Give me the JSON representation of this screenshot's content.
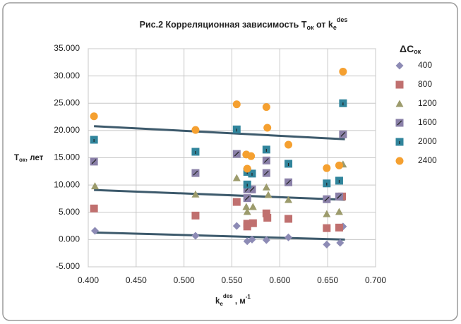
{
  "chart_data": {
    "type": "scatter",
    "title": [
      "Рис.2 Корреляционная зависимость Т",
      "ок",
      " от k",
      "e",
      "des"
    ],
    "x_label": [
      "k",
      "e",
      "des",
      " , м",
      "-1"
    ],
    "y_label": [
      "Т",
      "ок",
      ", лет"
    ],
    "legend_title": [
      "ΔC",
      "ок"
    ],
    "xlim": [
      0.4,
      0.7
    ],
    "xticks": [
      {
        "value": 0.4,
        "label": "0.400"
      },
      {
        "value": 0.45,
        "label": "0.450"
      },
      {
        "value": 0.5,
        "label": "0.500"
      },
      {
        "value": 0.55,
        "label": "0.550"
      },
      {
        "value": 0.6,
        "label": "0.600"
      },
      {
        "value": 0.65,
        "label": "0.650"
      },
      {
        "value": 0.7,
        "label": "0.700"
      }
    ],
    "ylim": [
      -5,
      35
    ],
    "yticks": [
      {
        "value": -5,
        "label": "-5.000"
      },
      {
        "value": 0,
        "label": "0.000"
      },
      {
        "value": 5,
        "label": "5.000"
      },
      {
        "value": 10,
        "label": "10.000"
      },
      {
        "value": 15,
        "label": "15.000"
      },
      {
        "value": 20,
        "label": "20.000"
      },
      {
        "value": 25,
        "label": "25.000"
      },
      {
        "value": 30,
        "label": "30.000"
      },
      {
        "value": 35,
        "label": "35.000"
      }
    ],
    "grid": true,
    "legend": "right",
    "series": [
      {
        "name": "400",
        "color": "#8d8bb5",
        "marker": "diamond",
        "x": [
          0.407,
          0.512,
          0.555,
          0.566,
          0.571,
          0.586,
          0.609,
          0.649,
          0.663,
          0.666
        ],
        "values": [
          1.6,
          0.7,
          2.5,
          -0.3,
          0.0,
          -0.1,
          0.4,
          -0.9,
          -0.6,
          2.4
        ]
      },
      {
        "name": "800",
        "color": "#c0706f",
        "marker": "square",
        "x": [
          0.406,
          0.512,
          0.555,
          0.566,
          0.566,
          0.572,
          0.586,
          0.587,
          0.609,
          0.649,
          0.662,
          0.665
        ],
        "values": [
          5.7,
          4.4,
          6.9,
          2.9,
          2.4,
          3.0,
          4.8,
          4.0,
          3.8,
          2.1,
          2.2,
          7.9
        ]
      },
      {
        "name": "1200",
        "color": "#9c9b6c",
        "marker": "triangle",
        "x": [
          0.407,
          0.512,
          0.555,
          0.565,
          0.566,
          0.572,
          0.586,
          0.588,
          0.609,
          0.649,
          0.662,
          0.666
        ],
        "values": [
          9.8,
          8.3,
          11.3,
          6.0,
          5.1,
          6.0,
          9.6,
          8.2,
          7.3,
          4.7,
          5.1,
          13.8
        ]
      },
      {
        "name": "1600",
        "color": "#8a80a8",
        "marker": "slash-square",
        "x": [
          0.406,
          0.512,
          0.555,
          0.566,
          0.566,
          0.571,
          0.586,
          0.586,
          0.609,
          0.649,
          0.662,
          0.666
        ],
        "values": [
          14.3,
          12.2,
          15.7,
          9.2,
          7.6,
          9.2,
          14.5,
          12.2,
          10.5,
          7.4,
          7.9,
          19.3
        ]
      },
      {
        "name": "2000",
        "color": "#31859c",
        "marker": "tick-square",
        "x": [
          0.406,
          0.512,
          0.555,
          0.566,
          0.566,
          0.571,
          0.586,
          0.609,
          0.649,
          0.662,
          0.666
        ],
        "values": [
          18.3,
          16.1,
          20.2,
          12.4,
          10.1,
          12.1,
          16.5,
          13.9,
          10.3,
          10.8,
          25.0
        ]
      },
      {
        "name": "2400",
        "color": "#f5a030",
        "marker": "circle",
        "x": [
          0.406,
          0.512,
          0.555,
          0.565,
          0.57,
          0.566,
          0.586,
          0.587,
          0.609,
          0.649,
          0.662,
          0.666
        ],
        "values": [
          22.6,
          20.1,
          24.8,
          15.6,
          15.3,
          13.0,
          24.3,
          20.5,
          17.4,
          13.1,
          13.6,
          30.8
        ]
      }
    ],
    "trend_color": "#3d5a6c",
    "trend_lines": [
      {
        "x": [
          0.406,
          0.668
        ],
        "values": [
          20.8,
          18.4
        ]
      },
      {
        "x": [
          0.406,
          0.668
        ],
        "values": [
          9.1,
          7.3
        ]
      },
      {
        "x": [
          0.406,
          0.668
        ],
        "values": [
          1.3,
          0.0
        ]
      }
    ]
  }
}
